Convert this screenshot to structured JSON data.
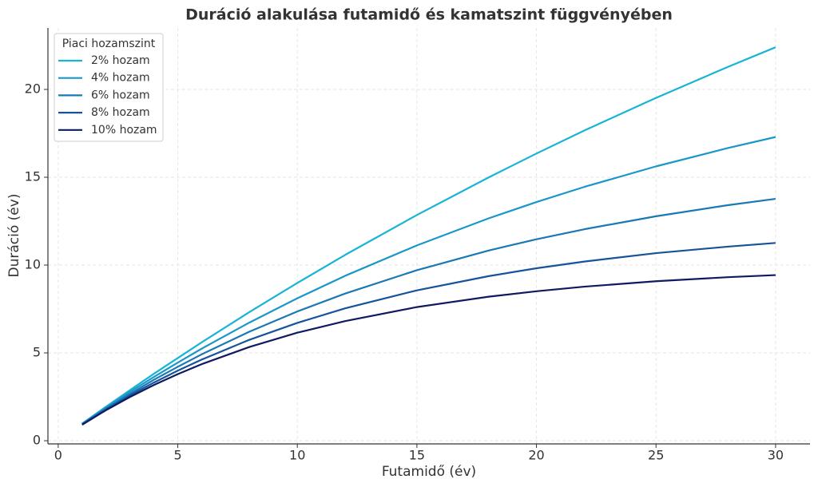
{
  "chart_data": {
    "type": "line",
    "title": "Duráció alakulása futamidő és kamatszint függvényében",
    "x_label": "Futamidő (év)",
    "y_label": "Duráció (év)",
    "legend_title": "Piaci hozamszint",
    "legend_position": "upper-left",
    "grid": true,
    "x": [
      1,
      2,
      3,
      4,
      5,
      6,
      8,
      10,
      12,
      15,
      18,
      20,
      22,
      25,
      28,
      30
    ],
    "series": [
      {
        "name": "2% hozam",
        "color": "#17b4d6",
        "values": [
          0.98,
          1.94,
          2.88,
          3.81,
          4.71,
          5.6,
          7.33,
          8.98,
          10.58,
          12.85,
          14.99,
          16.35,
          17.66,
          19.52,
          21.28,
          22.4
        ]
      },
      {
        "name": "4% hozam",
        "color": "#1a97c9",
        "values": [
          0.96,
          1.89,
          2.78,
          3.63,
          4.45,
          5.24,
          6.73,
          8.11,
          9.39,
          11.12,
          12.66,
          13.59,
          14.45,
          15.62,
          16.66,
          17.29
        ]
      },
      {
        "name": "6% hozam",
        "color": "#1a78b5",
        "values": [
          0.94,
          1.83,
          2.67,
          3.47,
          4.21,
          4.92,
          6.21,
          7.36,
          8.38,
          9.71,
          10.83,
          11.47,
          12.04,
          12.78,
          13.41,
          13.77
        ]
      },
      {
        "name": "8% hozam",
        "color": "#17539b",
        "values": [
          0.93,
          1.78,
          2.58,
          3.31,
          3.99,
          4.62,
          5.75,
          6.71,
          7.54,
          8.56,
          9.37,
          9.82,
          10.2,
          10.68,
          11.05,
          11.26
        ]
      },
      {
        "name": "10% hozam",
        "color": "#0f1a60",
        "values": [
          0.91,
          1.74,
          2.49,
          3.17,
          3.79,
          4.36,
          5.34,
          6.15,
          6.81,
          7.61,
          8.2,
          8.51,
          8.77,
          9.08,
          9.31,
          9.43
        ]
      }
    ],
    "xlim": [
      -0.43,
      31.44
    ],
    "ylim": [
      -0.18,
      23.5
    ],
    "xticks": [
      0,
      5,
      10,
      15,
      20,
      25,
      30
    ],
    "yticks": [
      0,
      5,
      10,
      15,
      20
    ]
  }
}
